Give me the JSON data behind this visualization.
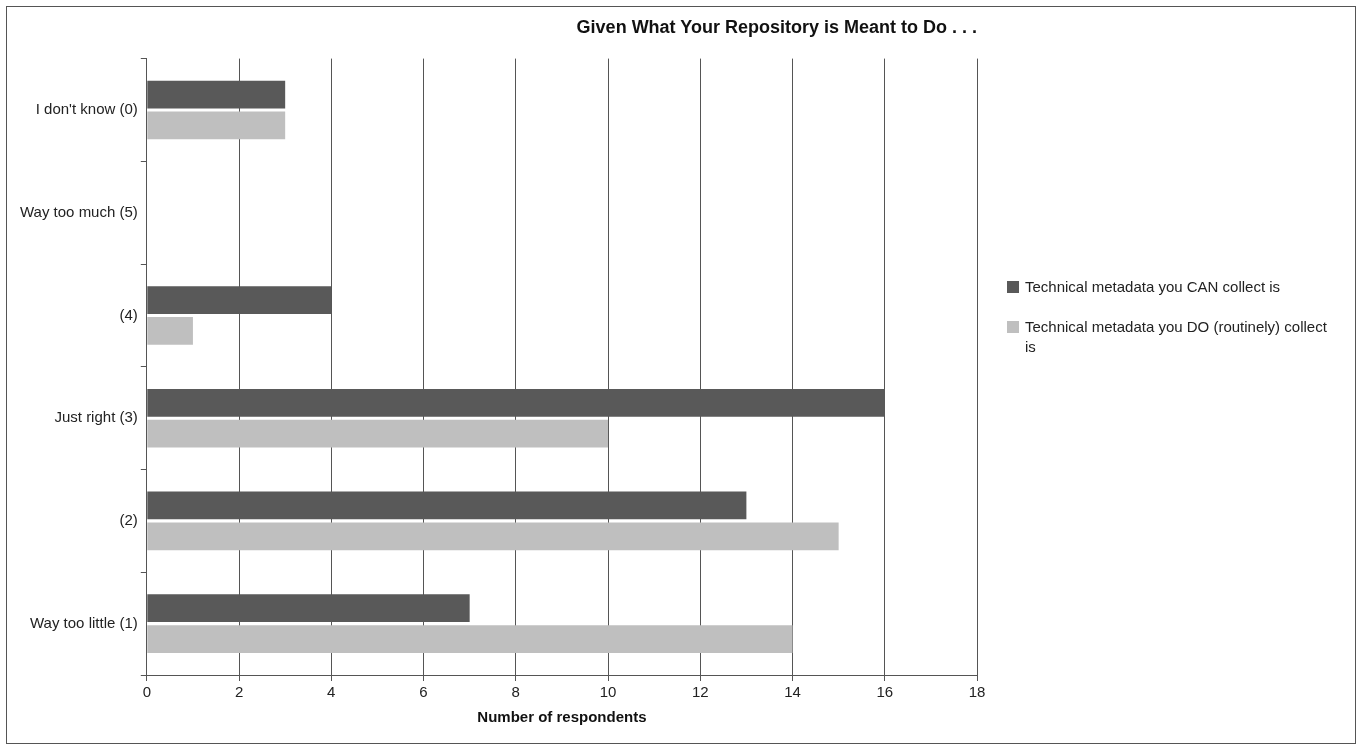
{
  "chart_data": {
    "type": "bar",
    "orientation": "horizontal",
    "title": "Given What Your Repository is Meant to Do . . .",
    "xlabel": "Number of respondents",
    "categories": [
      "I don't know (0)",
      "Way too much (5)",
      "(4)",
      "Just right (3)",
      "(2)",
      "Way too little (1)"
    ],
    "series": [
      {
        "name": "Technical metadata you CAN collect is",
        "color": "#595959",
        "values": [
          3,
          0,
          4,
          16,
          13,
          7
        ]
      },
      {
        "name": "Technical metadata you DO (routinely) collect is",
        "color": "#bfbfbf",
        "values": [
          3,
          0,
          1,
          10,
          15,
          14
        ]
      }
    ],
    "xlim": [
      0,
      18
    ],
    "xticks": [
      0,
      2,
      4,
      6,
      8,
      10,
      12,
      14,
      16,
      18
    ],
    "grid": "x",
    "legend": "right"
  }
}
